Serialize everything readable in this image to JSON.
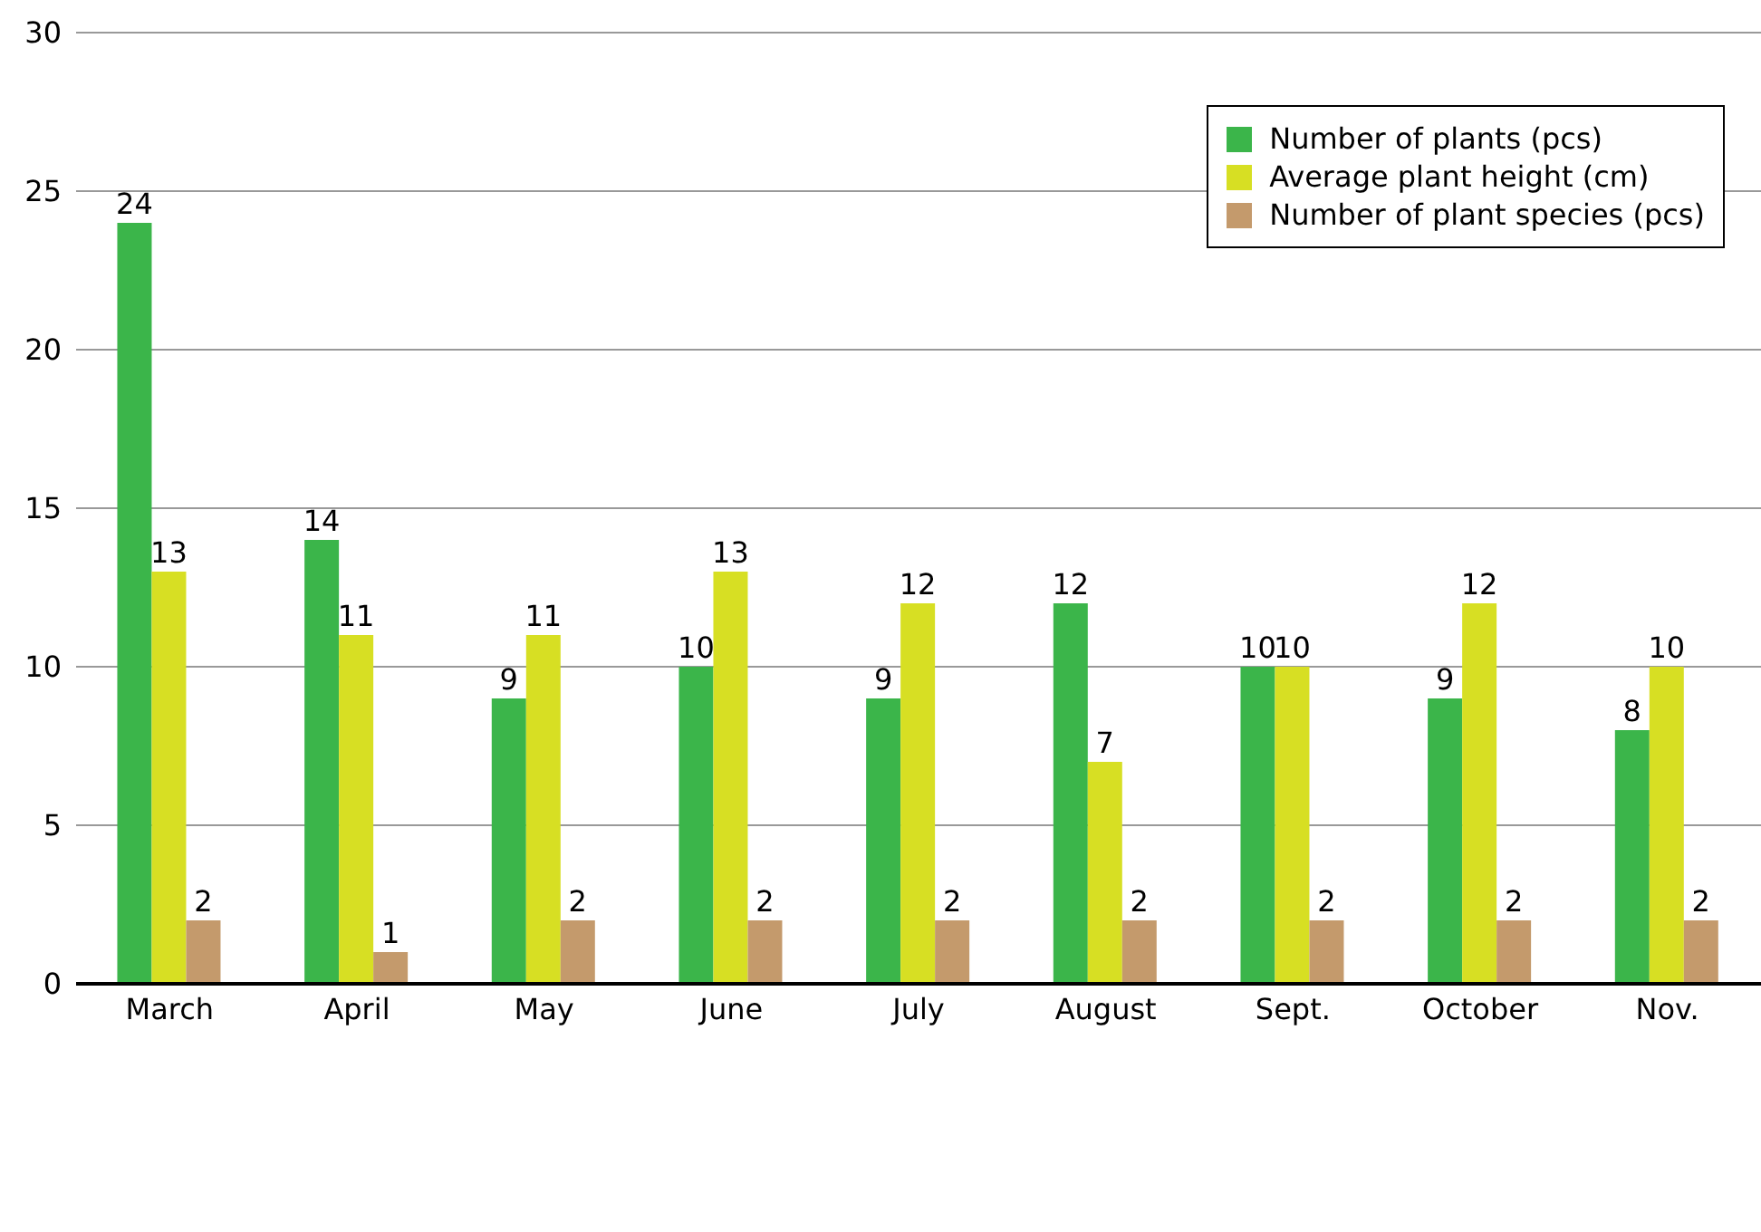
{
  "chart_data": {
    "type": "bar",
    "categories": [
      "March",
      "April",
      "May",
      "June",
      "July",
      "August",
      "Sept.",
      "October",
      "Nov."
    ],
    "series": [
      {
        "name": "Number of plants (pcs)",
        "color": "#3bb54a",
        "values": [
          24,
          14,
          9,
          10,
          9,
          12,
          10,
          9,
          8
        ]
      },
      {
        "name": "Average plant height (cm)",
        "color": "#d7df23",
        "values": [
          13,
          11,
          11,
          13,
          12,
          7,
          10,
          12,
          10
        ]
      },
      {
        "name": "Number of plant species (pcs)",
        "color": "#c49a6c",
        "values": [
          2,
          1,
          2,
          2,
          2,
          2,
          2,
          2,
          2
        ]
      }
    ],
    "ylim": [
      0,
      30
    ],
    "yticks": [
      0,
      5,
      10,
      15,
      20,
      25,
      30
    ],
    "grid": "y",
    "legend": "top right",
    "data_labels": true
  }
}
